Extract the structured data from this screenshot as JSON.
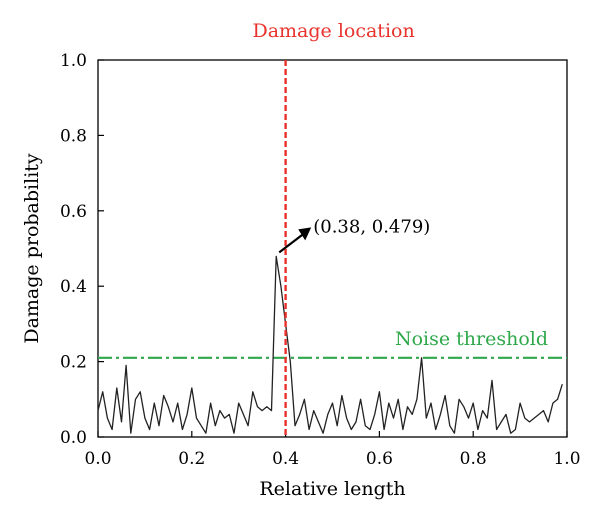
{
  "chart_data": {
    "type": "line",
    "title": "",
    "xlabel": "Relative length",
    "ylabel": "Damage probability",
    "xlim": [
      0.0,
      1.0
    ],
    "ylim": [
      0.0,
      1.0
    ],
    "xticks": [
      "0.0",
      "0.2",
      "0.4",
      "0.6",
      "0.8",
      "1.0"
    ],
    "yticks": [
      "0.0",
      "0.2",
      "0.4",
      "0.6",
      "0.8",
      "1.0"
    ],
    "grid": false,
    "series": [
      {
        "color": "#222222",
        "x": [
          0.0,
          0.01,
          0.02,
          0.03,
          0.04,
          0.05,
          0.06,
          0.07,
          0.08,
          0.09,
          0.1,
          0.11,
          0.12,
          0.13,
          0.14,
          0.15,
          0.16,
          0.17,
          0.18,
          0.19,
          0.2,
          0.21,
          0.22,
          0.23,
          0.24,
          0.25,
          0.26,
          0.27,
          0.28,
          0.29,
          0.3,
          0.31,
          0.32,
          0.33,
          0.34,
          0.35,
          0.36,
          0.37,
          0.38,
          0.39,
          0.4,
          0.41,
          0.42,
          0.43,
          0.44,
          0.45,
          0.46,
          0.47,
          0.48,
          0.49,
          0.5,
          0.51,
          0.52,
          0.53,
          0.54,
          0.55,
          0.56,
          0.57,
          0.58,
          0.59,
          0.6,
          0.61,
          0.62,
          0.63,
          0.64,
          0.65,
          0.66,
          0.67,
          0.68,
          0.69,
          0.7,
          0.71,
          0.72,
          0.73,
          0.74,
          0.75,
          0.76,
          0.77,
          0.78,
          0.79,
          0.8,
          0.81,
          0.82,
          0.83,
          0.84,
          0.85,
          0.86,
          0.87,
          0.88,
          0.89,
          0.9,
          0.91,
          0.92,
          0.93,
          0.94,
          0.95,
          0.96,
          0.97,
          0.98,
          0.99
        ],
        "y": [
          0.07,
          0.12,
          0.05,
          0.02,
          0.13,
          0.04,
          0.19,
          0.01,
          0.1,
          0.12,
          0.05,
          0.02,
          0.09,
          0.03,
          0.11,
          0.08,
          0.04,
          0.09,
          0.02,
          0.06,
          0.13,
          0.05,
          0.03,
          0.01,
          0.09,
          0.03,
          0.07,
          0.05,
          0.06,
          0.01,
          0.09,
          0.06,
          0.03,
          0.12,
          0.08,
          0.07,
          0.08,
          0.07,
          0.479,
          0.4,
          0.3,
          0.2,
          0.03,
          0.06,
          0.1,
          0.02,
          0.07,
          0.04,
          0.01,
          0.06,
          0.09,
          0.03,
          0.11,
          0.05,
          0.02,
          0.04,
          0.1,
          0.03,
          0.02,
          0.06,
          0.12,
          0.02,
          0.09,
          0.05,
          0.1,
          0.02,
          0.08,
          0.06,
          0.1,
          0.21,
          0.05,
          0.09,
          0.02,
          0.06,
          0.11,
          0.03,
          0.01,
          0.1,
          0.08,
          0.05,
          0.09,
          0.02,
          0.07,
          0.05,
          0.15,
          0.02,
          0.04,
          0.06,
          0.01,
          0.02,
          0.09,
          0.05,
          0.04,
          0.05,
          0.06,
          0.07,
          0.04,
          0.09,
          0.1,
          0.14
        ]
      }
    ],
    "damage_location": {
      "x": 0.4,
      "label": "Damage location",
      "color": "#e8322b"
    },
    "noise_threshold": {
      "y": 0.21,
      "label": "Noise threshold",
      "color": "#2ea84a"
    },
    "peak_annotation": {
      "x": 0.38,
      "y": 0.479,
      "text": "(0.38, 0.479)"
    }
  }
}
